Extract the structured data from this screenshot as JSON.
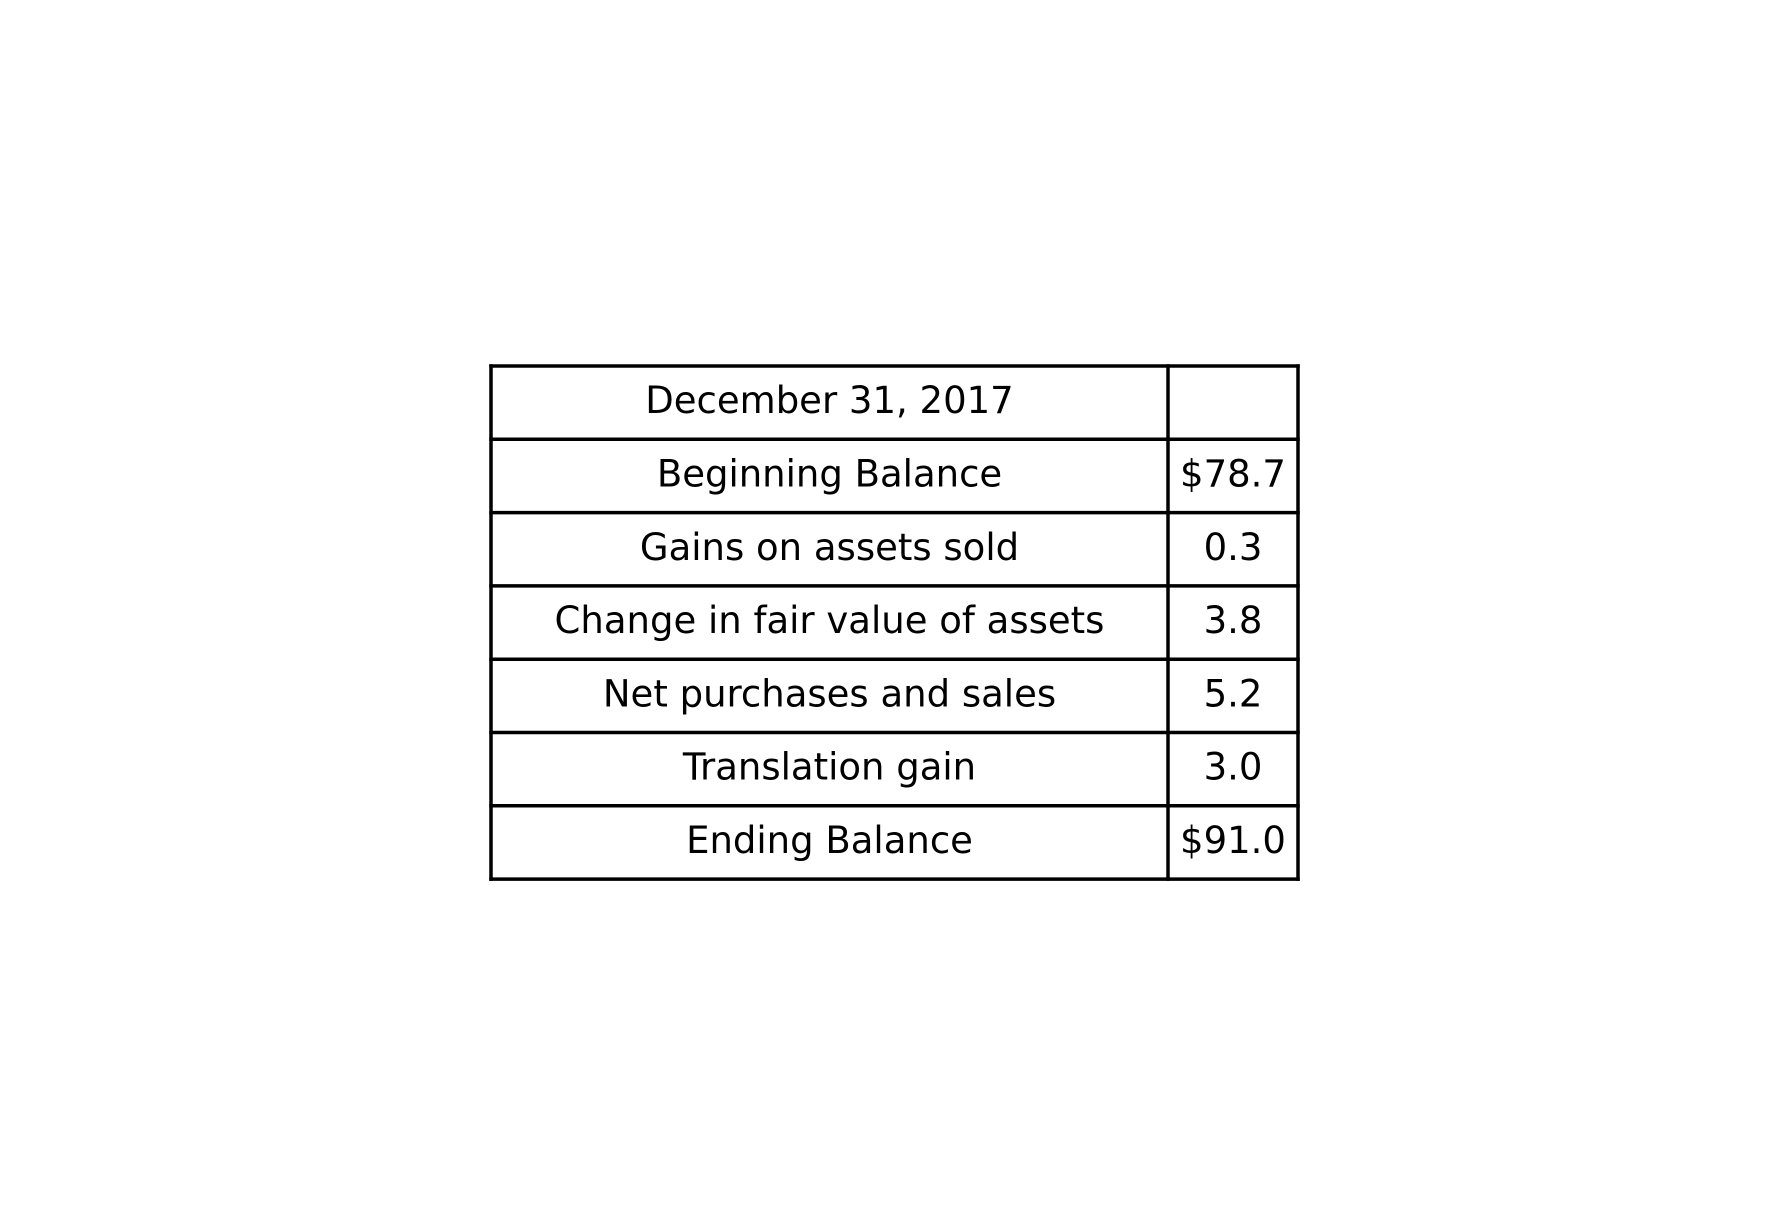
{
  "chart_data": {
    "type": "table",
    "header": [
      "December 31, 2017",
      ""
    ],
    "rows": [
      [
        "Beginning Balance",
        "$78.7"
      ],
      [
        "Gains on assets sold",
        "0.3"
      ],
      [
        "Change in fair value of assets",
        "3.8"
      ],
      [
        "Net purchases and sales",
        "5.2"
      ],
      [
        "Translation gain",
        "3.0"
      ],
      [
        "Ending Balance",
        "$91.0"
      ]
    ],
    "grid": true
  }
}
